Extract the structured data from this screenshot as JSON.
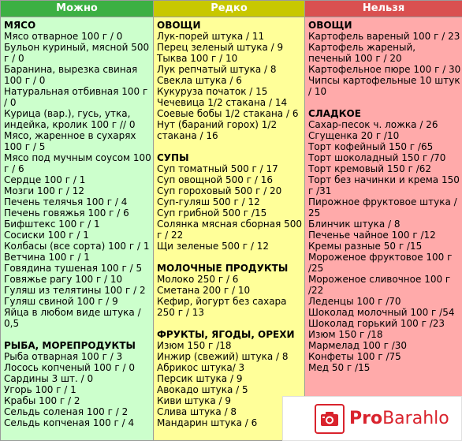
{
  "headers": {
    "can": "Можно",
    "rare": "Редко",
    "no": "Нельзя"
  },
  "colors": {
    "can_header": "#3cb043",
    "can_bg": "#ccffcc",
    "rare_header": "#c8c800",
    "rare_bg": "#ffff99",
    "no_header": "#d95050",
    "no_bg": "#ffaaaa"
  },
  "can_col": [
    {
      "t": "МЯСО",
      "s": true
    },
    {
      "t": "Мясо отварное 100 г / 0"
    },
    {
      "t": "Бульон куриный, мясной 500 г / 0"
    },
    {
      "t": "Баранина, вырезка свиная 100 г / 0"
    },
    {
      "t": "Натуральная отбивная 100 г / 0"
    },
    {
      "t": "Курица (вар.), гусь, утка, индейка, кролик 100 г // 0"
    },
    {
      "t": "Мясо, жаренное в сухарях 100 г / 5"
    },
    {
      "t": "Мясо под мучным соусом 100 г / 6"
    },
    {
      "t": "Сердце 100 г / 1"
    },
    {
      "t": "Мозги 100 г / 12"
    },
    {
      "t": "Печень телячья 100 г / 4"
    },
    {
      "t": "Печень говяжья 100 г / 6"
    },
    {
      "t": "Бифштекс 100 г / 1"
    },
    {
      "t": "Сосиски 100 г / 1"
    },
    {
      "t": "Колбасы (все сорта) 100 г / 1"
    },
    {
      "t": "Ветчина 100 г / 1"
    },
    {
      "t": "Говядина тушеная 100 г / 5"
    },
    {
      "t": "Говяжье рагу 100 г / 10"
    },
    {
      "t": "Гуляш из телятины 100 г / 2"
    },
    {
      "t": "Гуляш свиной 100 г / 9"
    },
    {
      "t": "Яйца в любом виде штука / 0,5"
    },
    {
      "gap": true
    },
    {
      "t": "РЫБА, МОРЕПРОДУКТЫ",
      "s": true
    },
    {
      "t": "Рыба отварная 100 г / 3"
    },
    {
      "t": "Лосось копченый 100 г / 0"
    },
    {
      "t": "Сардины 3 шт. / 0"
    },
    {
      "t": "Угорь 100 г / 1"
    },
    {
      "t": "Крабы 100 г / 2"
    },
    {
      "t": "Сельдь соленая 100 г / 2"
    },
    {
      "t": "Сельдь копченая 100 г / 4"
    }
  ],
  "rare_col": [
    {
      "t": "ОВОЩИ",
      "s": true
    },
    {
      "t": "Лук-порей штука / 11"
    },
    {
      "t": "Перец зеленый штука / 9"
    },
    {
      "t": "Тыква 100 г / 10"
    },
    {
      "t": "Лук репчатый штука / 8"
    },
    {
      "t": "Свекла штука / 6"
    },
    {
      "t": "Кукуруза початок / 15"
    },
    {
      "t": "Чечевица 1/2 стакана / 14"
    },
    {
      "t": "Соевые бобы 1/2 стакана / 6"
    },
    {
      "t": "Нут (бараний горох) 1/2 стакана / 16"
    },
    {
      "gap": true
    },
    {
      "t": "СУПЫ",
      "s": true
    },
    {
      "t": "Суп томатный 500 г / 17"
    },
    {
      "t": "Суп овощной 500 г / 16"
    },
    {
      "t": "Суп гороховый 500 г / 20"
    },
    {
      "t": "Суп-гуляш 500 г / 12"
    },
    {
      "t": "Суп грибной 500 г /15"
    },
    {
      "t": "Солянка мясная сборная 500 г / 22"
    },
    {
      "t": "Щи зеленые 500 г / 12"
    },
    {
      "gap": true
    },
    {
      "t": "МОЛОЧНЫЕ ПРОДУКТЫ",
      "s": true
    },
    {
      "t": "Молоко 250 г / 6"
    },
    {
      "t": "Сметана 200 г / 10"
    },
    {
      "t": "Кефир, йогурт без сахара 250 г / 13"
    },
    {
      "gap": true
    },
    {
      "t": "ФРУКТЫ, ЯГОДЫ, ОРЕХИ",
      "s": true
    },
    {
      "t": "Изюм 150 г /18"
    },
    {
      "t": "Инжир (свежий) штука / 8"
    },
    {
      "t": "Абрикос штука/ 3"
    },
    {
      "t": "Персик штука / 9"
    },
    {
      "t": "Авокадо штука / 5"
    },
    {
      "t": "Киви штука / 9"
    },
    {
      "t": "Слива штука / 8"
    },
    {
      "t": "Мандарин штука / 6"
    }
  ],
  "no_col": [
    {
      "t": "ОВОЩИ",
      "s": true
    },
    {
      "t": "Картофель вареный 100 г / 23"
    },
    {
      "t": "Картофель жареный, печеный 100 г / 20"
    },
    {
      "t": "Картофельное пюре 100 г / 30"
    },
    {
      "t": "Чипсы картофельные 10 штук / 10"
    },
    {
      "gap": true
    },
    {
      "t": "СЛАДКОЕ",
      "s": true
    },
    {
      "t": "Сахар-песок ч. ложка / 26"
    },
    {
      "t": "Сгущенка 20 г /10"
    },
    {
      "t": "Торт кофейный 150 г /65"
    },
    {
      "t": "Торт шоколадный 150 г /70"
    },
    {
      "t": "Торт кремовый 150 г /62"
    },
    {
      "t": "Торт без начинки и крема 150 г /31"
    },
    {
      "t": "Пирожное фруктовое штука / 25"
    },
    {
      "t": "Блинчик штука / 8"
    },
    {
      "t": "Печенье чайное 100 г /12"
    },
    {
      "t": "Кремы разные 50 г /15"
    },
    {
      "t": "Мороженое фруктовое 100 г /25"
    },
    {
      "t": "Мороженое сливочное 100 г /22"
    },
    {
      "t": "Леденцы 100 г /70"
    },
    {
      "t": "Шоколад молочный 100 г /54"
    },
    {
      "t": "Шоколад горький 100 г /23"
    },
    {
      "t": "Изюм 150 г /18"
    },
    {
      "t": "Мармелад 100 г /30"
    },
    {
      "t": "Конфеты 100 г /75"
    },
    {
      "t": "Мед 50 г /15"
    }
  ],
  "watermark": {
    "icon": "camera-icon",
    "brand_bold": "Pro",
    "brand_rest": "Barahlo"
  }
}
